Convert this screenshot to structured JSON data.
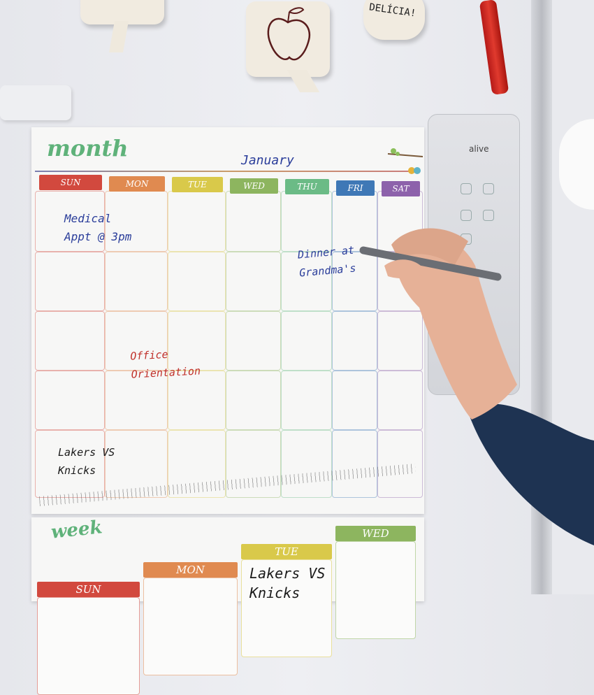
{
  "magnets": {
    "left_bubble": "",
    "apple_bubble_icon": "apple-icon",
    "delicia_text": "DELÍCIA!"
  },
  "month_board": {
    "title": "month",
    "month_name": "January",
    "days": [
      {
        "label": "SUN",
        "color": "#d2493e"
      },
      {
        "label": "MON",
        "color": "#e08a50"
      },
      {
        "label": "TUE",
        "color": "#d9c94a"
      },
      {
        "label": "WED",
        "color": "#8db55f"
      },
      {
        "label": "THU",
        "color": "#6bbb86"
      },
      {
        "label": "FRI",
        "color": "#3f78b6"
      },
      {
        "label": "SAT",
        "color": "#8d62ab"
      }
    ],
    "notes": {
      "medical": "Medical\nAppt @ 3pm",
      "dinner": "Dinner at\nGrandma's",
      "office": "Office\nOrientation",
      "lakers": "Lakers VS\nKnicks"
    }
  },
  "week_board": {
    "title": "week",
    "days": [
      {
        "label": "SUN",
        "color": "#d2493e"
      },
      {
        "label": "MON",
        "color": "#e08a50"
      },
      {
        "label": "TUE",
        "color": "#d9c94a"
      },
      {
        "label": "WED",
        "color": "#8db55f"
      }
    ],
    "tue_note": "Lakers VS\nKnicks"
  },
  "dispenser": {
    "brand": "alive"
  },
  "colors": {
    "blue_ink": "#2a3d9a",
    "red_ink": "#c0302a",
    "black_ink": "#1a1a1a",
    "sleeve": "#1e3352",
    "skin": "#e6b197"
  }
}
